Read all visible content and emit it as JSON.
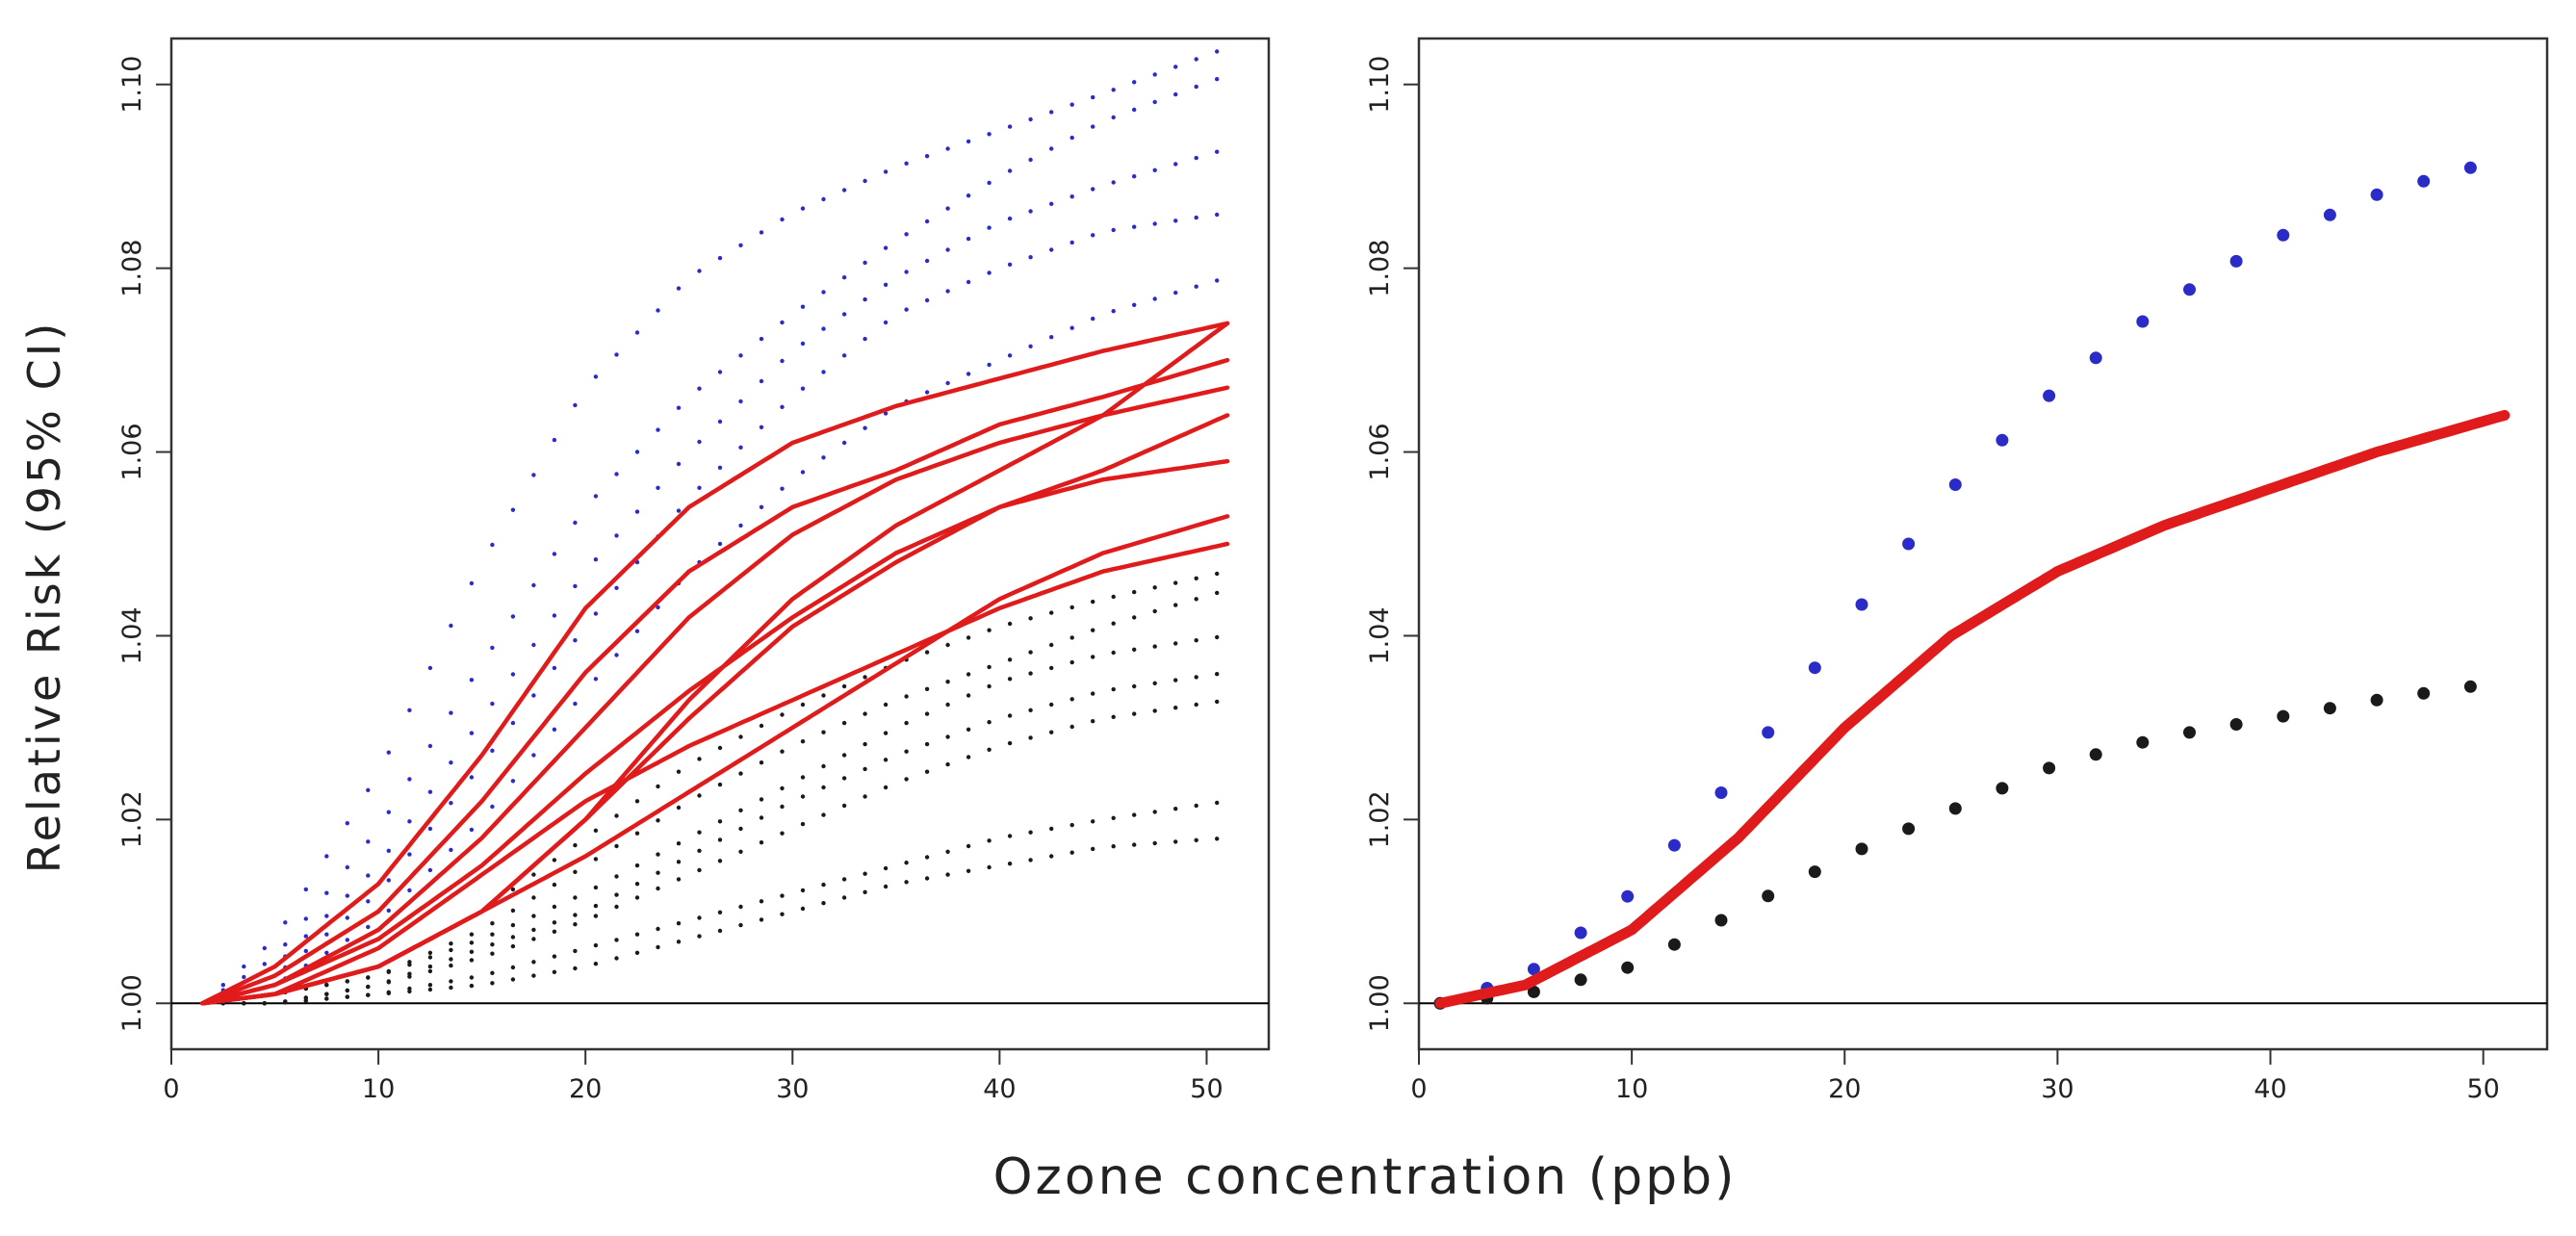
{
  "figure": {
    "xlabel": "Ozone concentration (ppb)",
    "ylabel": "Relative Risk (95% CI)"
  },
  "colors": {
    "estimate": "#e01b1b",
    "upper_ci": "#2b2bc8",
    "lower_ci": "#1a1a1a",
    "reference_line": "#000000"
  },
  "chart_data": [
    {
      "type": "line",
      "xlabel": "",
      "ylabel": "Relative Risk (95% CI)",
      "xlim": [
        0,
        53
      ],
      "ylim": [
        0.995,
        1.105
      ],
      "xticks": [
        "0",
        "10",
        "20",
        "30",
        "40",
        "50"
      ],
      "yticks": [
        "1.00",
        "1.02",
        "1.04",
        "1.06",
        "1.08",
        "1.10"
      ],
      "reference_line_y": 1.0,
      "x": [
        1.5,
        5,
        10,
        15,
        20,
        25,
        30,
        35,
        40,
        45,
        51
      ],
      "series": [
        {
          "role": "estimate",
          "style": "solid",
          "values": [
            1.0,
            1.004,
            1.013,
            1.027,
            1.043,
            1.054,
            1.061,
            1.065,
            1.068,
            1.071,
            1.074
          ]
        },
        {
          "role": "estimate",
          "style": "solid",
          "values": [
            1.0,
            1.003,
            1.01,
            1.022,
            1.036,
            1.047,
            1.054,
            1.058,
            1.063,
            1.066,
            1.07
          ]
        },
        {
          "role": "estimate",
          "style": "solid",
          "values": [
            1.0,
            1.002,
            1.008,
            1.018,
            1.03,
            1.042,
            1.051,
            1.057,
            1.061,
            1.064,
            1.067
          ]
        },
        {
          "role": "estimate",
          "style": "solid",
          "values": [
            1.0,
            1.002,
            1.007,
            1.015,
            1.025,
            1.034,
            1.042,
            1.049,
            1.054,
            1.057,
            1.059
          ]
        },
        {
          "role": "estimate",
          "style": "solid",
          "values": [
            1.0,
            1.001,
            1.004,
            1.01,
            1.02,
            1.033,
            1.044,
            1.052,
            1.058,
            1.064,
            1.074
          ]
        },
        {
          "role": "estimate",
          "style": "solid",
          "values": [
            1.0,
            1.001,
            1.004,
            1.01,
            1.02,
            1.031,
            1.041,
            1.048,
            1.054,
            1.058,
            1.064
          ]
        },
        {
          "role": "estimate",
          "style": "solid",
          "values": [
            1.0,
            1.001,
            1.006,
            1.014,
            1.022,
            1.028,
            1.033,
            1.038,
            1.043,
            1.047,
            1.05
          ]
        },
        {
          "role": "estimate",
          "style": "solid",
          "values": [
            1.0,
            1.001,
            1.004,
            1.01,
            1.016,
            1.023,
            1.03,
            1.037,
            1.044,
            1.049,
            1.053
          ]
        },
        {
          "role": "upper_ci",
          "style": "dotted",
          "values": [
            1.0,
            1.007,
            1.025,
            1.048,
            1.067,
            1.079,
            1.086,
            1.091,
            1.095,
            1.099,
            1.104
          ]
        },
        {
          "role": "upper_ci",
          "style": "dotted",
          "values": [
            1.0,
            1.005,
            1.019,
            1.037,
            1.054,
            1.066,
            1.075,
            1.083,
            1.09,
            1.096,
            1.101
          ]
        },
        {
          "role": "upper_ci",
          "style": "dotted",
          "values": [
            1.0,
            1.004,
            1.015,
            1.031,
            1.047,
            1.06,
            1.071,
            1.079,
            1.085,
            1.089,
            1.093
          ]
        },
        {
          "role": "upper_ci",
          "style": "dotted",
          "values": [
            1.0,
            1.003,
            1.012,
            1.026,
            1.041,
            1.055,
            1.066,
            1.075,
            1.08,
            1.084,
            1.086
          ]
        },
        {
          "role": "upper_ci",
          "style": "dotted",
          "values": [
            1.0,
            1.002,
            1.009,
            1.02,
            1.034,
            1.047,
            1.057,
            1.065,
            1.07,
            1.075,
            1.079
          ]
        },
        {
          "role": "lower_ci",
          "style": "dotted",
          "values": [
            1.0,
            1.001,
            1.004,
            1.01,
            1.018,
            1.026,
            1.032,
            1.037,
            1.041,
            1.044,
            1.047
          ]
        },
        {
          "role": "lower_ci",
          "style": "dotted",
          "values": [
            1.0,
            1.001,
            1.003,
            1.008,
            1.015,
            1.022,
            1.028,
            1.033,
            1.037,
            1.041,
            1.045
          ]
        },
        {
          "role": "lower_ci",
          "style": "dotted",
          "values": [
            1.0,
            1.001,
            1.003,
            1.007,
            1.012,
            1.018,
            1.024,
            1.03,
            1.035,
            1.038,
            1.04
          ]
        },
        {
          "role": "lower_ci",
          "style": "dotted",
          "values": [
            1.0,
            1.0,
            1.002,
            1.006,
            1.01,
            1.016,
            1.022,
            1.027,
            1.031,
            1.034,
            1.036
          ]
        },
        {
          "role": "lower_ci",
          "style": "dotted",
          "values": [
            1.0,
            1.0,
            1.002,
            1.005,
            1.009,
            1.014,
            1.019,
            1.024,
            1.028,
            1.031,
            1.033
          ]
        },
        {
          "role": "lower_ci",
          "style": "dotted",
          "values": [
            1.0,
            1.0,
            1.001,
            1.003,
            1.006,
            1.009,
            1.012,
            1.015,
            1.018,
            1.02,
            1.022
          ]
        },
        {
          "role": "lower_ci",
          "style": "dotted",
          "values": [
            1.0,
            1.0,
            1.001,
            1.002,
            1.004,
            1.007,
            1.01,
            1.013,
            1.015,
            1.017,
            1.018
          ]
        }
      ]
    },
    {
      "type": "line",
      "xlabel": "",
      "ylabel": "",
      "xlim": [
        0,
        53
      ],
      "ylim": [
        0.995,
        1.105
      ],
      "xticks": [
        "0",
        "10",
        "20",
        "30",
        "40",
        "50"
      ],
      "yticks": [
        "1.00",
        "1.02",
        "1.04",
        "1.06",
        "1.08",
        "1.10"
      ],
      "reference_line_y": 1.0,
      "x": [
        1,
        5,
        10,
        15,
        20,
        25,
        30,
        35,
        40,
        45,
        51
      ],
      "series": [
        {
          "role": "estimate",
          "style": "solid",
          "values": [
            1.0,
            1.002,
            1.008,
            1.018,
            1.03,
            1.04,
            1.047,
            1.052,
            1.056,
            1.06,
            1.064
          ]
        },
        {
          "role": "upper_ci",
          "style": "dotted",
          "values": [
            1.0,
            1.003,
            1.012,
            1.025,
            1.041,
            1.056,
            1.067,
            1.076,
            1.083,
            1.088,
            1.092
          ]
        },
        {
          "role": "lower_ci",
          "style": "dotted",
          "values": [
            1.0,
            1.001,
            1.004,
            1.01,
            1.016,
            1.021,
            1.026,
            1.029,
            1.031,
            1.033,
            1.035
          ]
        }
      ]
    }
  ]
}
